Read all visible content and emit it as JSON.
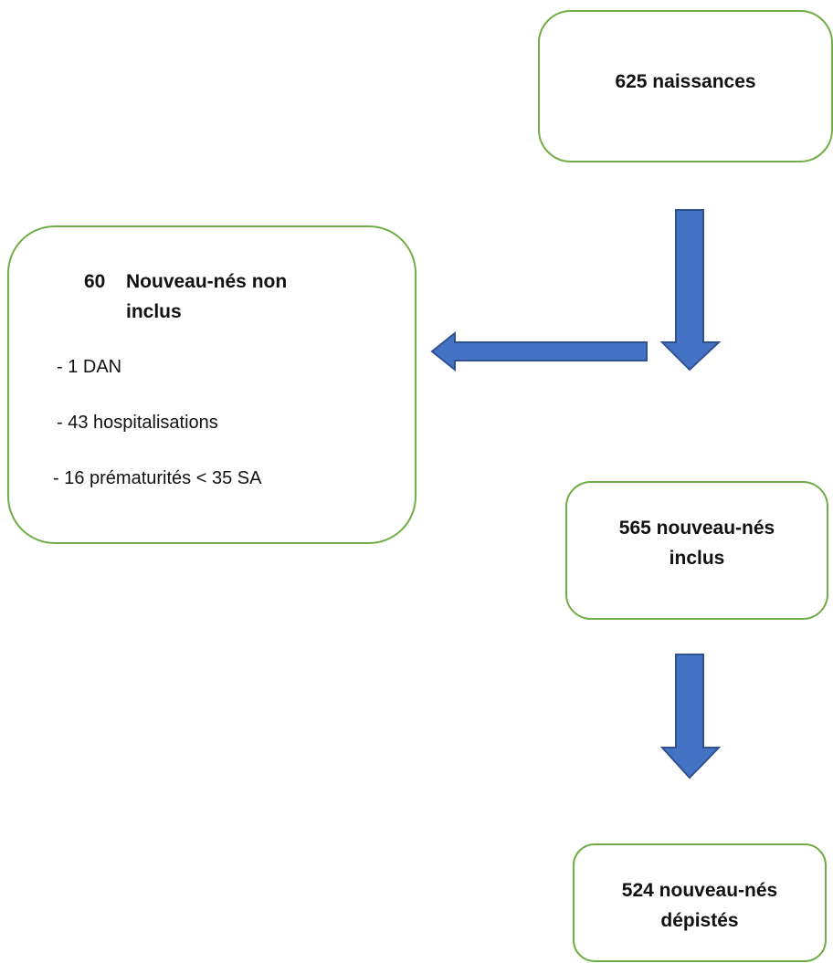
{
  "nodes": {
    "births": {
      "label": "625 naissances"
    },
    "excluded": {
      "count": "60",
      "title_rest": "Nouveau-nés non",
      "title_cont": "inclus",
      "items": [
        "- 1 DAN",
        "- 43 hospitalisations",
        "- 16 prématurités < 35 SA"
      ]
    },
    "included": {
      "line1": "565 nouveau-nés",
      "line2": "inclus"
    },
    "screened": {
      "line1": "524 nouveau-nés",
      "line2": "dépistés"
    }
  },
  "colors": {
    "box_border": "#70ad47",
    "arrow_fill": "#4472c4",
    "arrow_stroke": "#2f528f"
  }
}
